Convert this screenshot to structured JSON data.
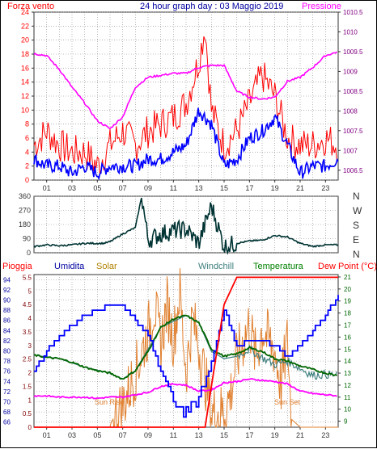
{
  "chart_data": [
    {
      "type": "line",
      "title": "24 hour graph day : 03 Maggio 2019",
      "left_label": "Forza vento",
      "right_label": "Pressione",
      "x_ticks": [
        "01",
        "03",
        "05",
        "07",
        "09",
        "11",
        "13",
        "15",
        "17",
        "19",
        "21",
        "23"
      ],
      "x_range": [
        0,
        24
      ],
      "ylim_left": [
        0,
        24
      ],
      "yticks_left": [
        "0",
        "2",
        "4",
        "6",
        "8",
        "10",
        "12",
        "14",
        "16",
        "18",
        "20",
        "22",
        "24"
      ],
      "ylim_right": [
        1006.25,
        1010.5
      ],
      "yticks_right": [
        "1006.5",
        "1007",
        "1007.5",
        "1008",
        "1008.5",
        "1009",
        "1009.5",
        "1010",
        "1010.5"
      ],
      "series": [
        {
          "role": "gust",
          "color": "#ff0000",
          "x": [
            0,
            1,
            2,
            3,
            4,
            5,
            6,
            7,
            8,
            9,
            10,
            11,
            12,
            13,
            13.5,
            14,
            15,
            16,
            17,
            18,
            19,
            20,
            21,
            22,
            23,
            24
          ],
          "values": [
            5,
            7,
            5,
            4,
            4,
            2,
            5,
            7,
            5,
            7,
            8,
            9,
            11,
            17,
            22,
            10,
            5,
            7,
            11,
            15,
            12,
            6,
            5,
            5,
            6,
            5
          ]
        },
        {
          "role": "speed",
          "color": "#0000ff",
          "x": [
            0,
            1,
            2,
            3,
            4,
            5,
            6,
            7,
            8,
            9,
            10,
            11,
            12,
            13,
            14,
            15,
            16,
            17,
            18,
            19,
            20,
            21,
            22,
            23,
            24
          ],
          "values": [
            3,
            2,
            2,
            1,
            2,
            1,
            2,
            2,
            2,
            3,
            3,
            4,
            5,
            10,
            8,
            2,
            3,
            6,
            7,
            9,
            5,
            1,
            2,
            2,
            3
          ]
        },
        {
          "role": "pressure",
          "color": "#ff00ff",
          "x": [
            0,
            1,
            2,
            3,
            4,
            5,
            6,
            7,
            8,
            9,
            10,
            11,
            12,
            13,
            14,
            15,
            16,
            17,
            18,
            19,
            20,
            21,
            22,
            23,
            24
          ],
          "values": [
            1009.45,
            1009.4,
            1009.05,
            1008.6,
            1008.2,
            1007.75,
            1007.55,
            1007.85,
            1008.6,
            1008.85,
            1008.9,
            1008.95,
            1008.95,
            1009.1,
            1009.15,
            1009.15,
            1008.5,
            1008.35,
            1008.3,
            1008.35,
            1008.75,
            1008.85,
            1009.1,
            1009.4,
            1009.5
          ]
        }
      ]
    },
    {
      "type": "line",
      "xlabel": "",
      "ylim": [
        0,
        360
      ],
      "yticks": [
        "0",
        "90",
        "180",
        "270",
        "360"
      ],
      "right_labels": [
        "N",
        "W",
        "S",
        "E",
        "N"
      ],
      "series": [
        {
          "role": "wind_direction",
          "color": "#003333",
          "x": [
            0,
            1,
            2,
            3,
            4,
            5,
            5.5,
            6,
            7,
            8,
            8.5,
            9,
            10,
            11,
            12,
            13,
            14,
            15,
            16,
            17,
            18,
            19,
            20,
            21,
            22,
            23,
            24
          ],
          "values": [
            40,
            50,
            45,
            50,
            60,
            60,
            60,
            70,
            120,
            160,
            360,
            80,
            120,
            140,
            150,
            60,
            300,
            40,
            60,
            75,
            80,
            110,
            100,
            60,
            40,
            50,
            50
          ]
        }
      ]
    },
    {
      "type": "line",
      "labels": {
        "rain": "Pioggia",
        "humidity": "Umidita",
        "solar": "Solar",
        "windchill": "Windchill",
        "temperature": "Temperatura",
        "dewpoint": "Dew Point (°C)"
      },
      "annotations": [
        "Sun Rise",
        "Sun Set"
      ],
      "x_ticks": [
        "01",
        "03",
        "05",
        "07",
        "09",
        "11",
        "13",
        "15",
        "17",
        "19",
        "21",
        "23"
      ],
      "ylim_humidity": [
        65,
        95
      ],
      "yticks_humidity": [
        "66",
        "68",
        "70",
        "72",
        "74",
        "76",
        "78",
        "80",
        "82",
        "84",
        "86",
        "88",
        "90",
        "92",
        "94"
      ],
      "ylim_rain": [
        0,
        5.6
      ],
      "yticks_rain": [
        "0",
        "0.5",
        "1",
        "1.5",
        "2",
        "2.5",
        "3",
        "3.5",
        "4",
        "4.5",
        "5",
        "5.5"
      ],
      "ylim_temp": [
        8.5,
        21.2
      ],
      "yticks_temp": [
        "9",
        "10",
        "11",
        "12",
        "13",
        "14",
        "15",
        "16",
        "17",
        "18",
        "19",
        "20",
        "21"
      ],
      "series": [
        {
          "role": "humidity",
          "color": "#0000ff",
          "axis": "humidity",
          "x": [
            0,
            1,
            2,
            3,
            4,
            5,
            6,
            7,
            8,
            9,
            10,
            11,
            12,
            13,
            14,
            15,
            16,
            17,
            18,
            19,
            20,
            21,
            22,
            23,
            24
          ],
          "values": [
            76,
            80,
            83,
            85,
            87,
            88,
            89,
            89,
            86,
            83,
            76,
            70,
            68,
            70,
            78,
            88,
            81,
            82,
            82,
            81,
            79,
            81,
            84,
            87,
            91
          ]
        },
        {
          "role": "rain",
          "color": "#ff0000",
          "axis": "rain",
          "x": [
            0,
            6,
            13.5,
            14,
            14.5,
            15,
            16,
            24
          ],
          "values": [
            0,
            0,
            0,
            1.5,
            3.0,
            4.5,
            5.5,
            5.5
          ]
        },
        {
          "role": "temperature",
          "color": "#006600",
          "axis": "temp",
          "x": [
            0,
            1,
            2,
            3,
            4,
            5,
            6,
            7,
            8,
            9,
            10,
            11,
            12,
            13,
            14,
            15,
            16,
            17,
            18,
            19,
            20,
            21,
            22,
            23,
            24
          ],
          "values": [
            14.5,
            14.3,
            14.2,
            13.9,
            13.5,
            13.2,
            13.0,
            12.5,
            13.2,
            14.8,
            16.8,
            17.5,
            17.8,
            17.2,
            15.0,
            14.4,
            14.6,
            15.1,
            14.8,
            14.2,
            14.0,
            13.6,
            13.3,
            13.0,
            12.8
          ]
        },
        {
          "role": "windchill",
          "color": "#408080",
          "axis": "temp",
          "x": [
            0,
            2,
            4,
            6,
            7,
            8,
            10,
            12,
            13,
            14,
            15,
            16,
            17,
            18,
            19,
            20,
            21,
            22,
            23,
            24
          ],
          "values": [
            14.5,
            14.2,
            13.5,
            13.0,
            12.5,
            13.2,
            16.8,
            17.8,
            17.2,
            14.8,
            14.2,
            14.4,
            15.0,
            14.3,
            13.7,
            14.0,
            13.4,
            12.8,
            12.9,
            12.8
          ]
        },
        {
          "role": "dewpoint",
          "color": "#ff00ff",
          "axis": "temp",
          "x": [
            0,
            1,
            2,
            3,
            4,
            5,
            6,
            7,
            8,
            9,
            10,
            11,
            12,
            13,
            14,
            15,
            16,
            17,
            18,
            19,
            20,
            21,
            22,
            23,
            24
          ],
          "values": [
            11.1,
            11.1,
            11.0,
            11.0,
            11.0,
            10.9,
            11.0,
            11.0,
            11.2,
            11.4,
            11.9,
            12.1,
            12.0,
            11.5,
            11.6,
            12.2,
            12.3,
            12.5,
            12.4,
            12.3,
            12.1,
            11.5,
            11.3,
            11.2,
            11.1
          ]
        },
        {
          "role": "solar",
          "color": "#e08030",
          "axis": "rain",
          "x": [
            0,
            6,
            6.1,
            7,
            8,
            9,
            9.5,
            10,
            10.5,
            11,
            11.5,
            12,
            12.5,
            13,
            13.5,
            14,
            15,
            15.5,
            16,
            17,
            17.5,
            18,
            19,
            19.5,
            20,
            20.3,
            21,
            24
          ],
          "values": [
            0,
            0,
            0.2,
            0.8,
            2.0,
            3.5,
            4.5,
            3.0,
            4.5,
            3.2,
            5.0,
            2.0,
            4.0,
            3.0,
            1.8,
            0.5,
            0.6,
            1.2,
            2.5,
            3.8,
            2.5,
            3.6,
            2.8,
            1.5,
            3.2,
            0.3,
            0,
            0
          ]
        }
      ]
    }
  ]
}
